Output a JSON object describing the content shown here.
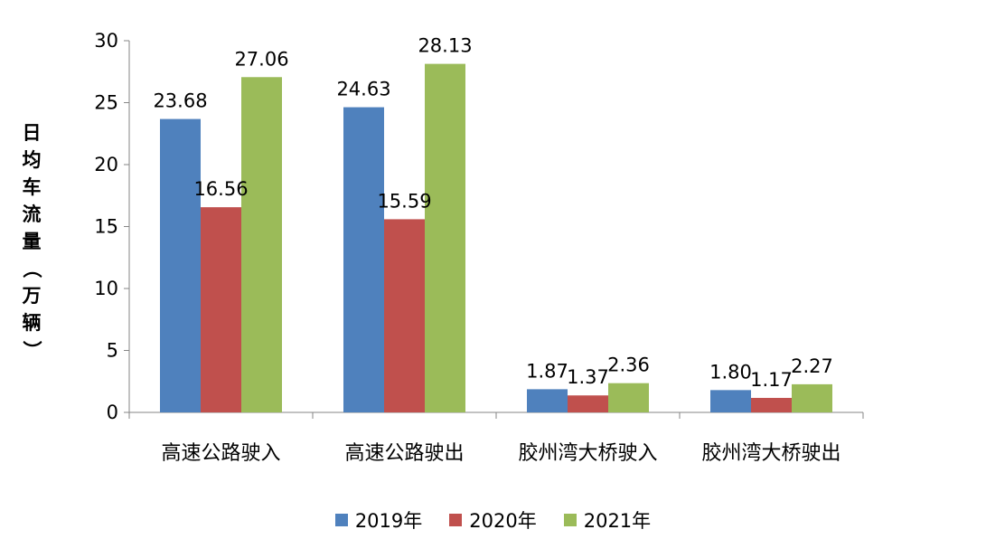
{
  "chart_data": {
    "type": "bar",
    "categories": [
      "高速公路驶入",
      "高速公路驶出",
      "胶州湾大桥驶入",
      "胶州湾大桥驶出"
    ],
    "series": [
      {
        "name": "2019年",
        "color": "#4F81BD",
        "values": [
          23.68,
          24.63,
          1.87,
          1.8
        ],
        "labels": [
          "23.68",
          "24.63",
          "1.87",
          "1.80"
        ]
      },
      {
        "name": "2020年",
        "color": "#C0504D",
        "values": [
          16.56,
          15.59,
          1.37,
          1.17
        ],
        "labels": [
          "16.56",
          "15.59",
          "1.37",
          "1.17"
        ]
      },
      {
        "name": "2021年",
        "color": "#9BBB59",
        "values": [
          27.06,
          28.13,
          2.36,
          2.27
        ],
        "labels": [
          "27.06",
          "28.13",
          "2.36",
          "2.27"
        ]
      }
    ],
    "ylabel_chars": [
      "日",
      "均",
      "车",
      "流",
      "量",
      "（",
      "万",
      "辆",
      "）"
    ],
    "ylim": [
      0,
      30
    ],
    "yticks": [
      "0",
      "5",
      "10",
      "15",
      "20",
      "25",
      "30"
    ],
    "grid": false,
    "legend_position": "bottom"
  }
}
